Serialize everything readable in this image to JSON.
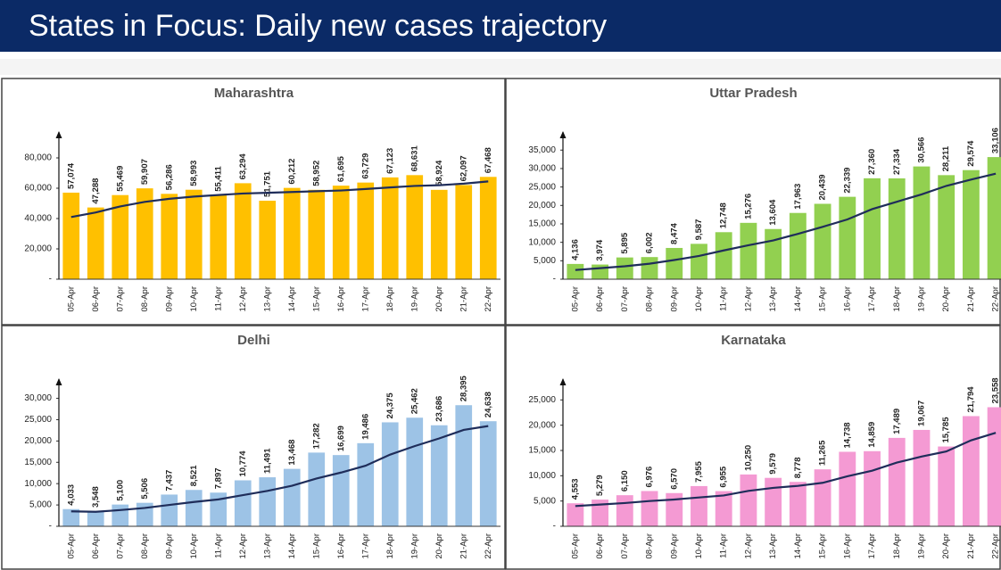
{
  "title": "States in Focus: Daily new cases trajectory",
  "chart_data": [
    {
      "type": "bar",
      "title": "Maharashtra",
      "categories": [
        "05-Apr",
        "06-Apr",
        "07-Apr",
        "08-Apr",
        "09-Apr",
        "10-Apr",
        "11-Apr",
        "12-Apr",
        "13-Apr",
        "14-Apr",
        "15-Apr",
        "16-Apr",
        "17-Apr",
        "18-Apr",
        "19-Apr",
        "20-Apr",
        "21-Apr",
        "22-Apr"
      ],
      "series": [
        {
          "type": "bar",
          "color": "#ffc000",
          "values": [
            57074,
            47288,
            55469,
            59907,
            56286,
            58993,
            55411,
            63294,
            51751,
            60212,
            58952,
            61695,
            63729,
            67123,
            68631,
            58924,
            62097,
            67468
          ],
          "value_labels": [
            "57,074",
            "47,288",
            "55,469",
            "59,907",
            "56,286",
            "58,993",
            "55,411",
            "63,294",
            "51,751",
            "60,212",
            "58,952",
            "61,695",
            "63,729",
            "67,123",
            "68,631",
            "58,924",
            "62,097",
            "67,468"
          ]
        },
        {
          "type": "line",
          "color": "#1f2d5a",
          "values": [
            41000,
            44000,
            48000,
            51000,
            53000,
            54500,
            55500,
            56500,
            57000,
            57500,
            58000,
            58500,
            59500,
            60500,
            61500,
            62000,
            63000,
            64500
          ]
        }
      ],
      "ylim": [
        0,
        90000
      ],
      "yticks": [
        {
          "value": 0,
          "label": "-"
        },
        {
          "value": 20000,
          "label": "20,000"
        },
        {
          "value": 40000,
          "label": "40,000"
        },
        {
          "value": 60000,
          "label": "60,000"
        },
        {
          "value": 80000,
          "label": "80,000"
        }
      ]
    },
    {
      "type": "bar",
      "title": "Uttar Pradesh",
      "categories": [
        "05-Apr",
        "06-Apr",
        "07-Apr",
        "08-Apr",
        "09-Apr",
        "10-Apr",
        "11-Apr",
        "12-Apr",
        "13-Apr",
        "14-Apr",
        "15-Apr",
        "16-Apr",
        "17-Apr",
        "18-Apr",
        "19-Apr",
        "20-Apr",
        "21-Apr",
        "22-Apr"
      ],
      "series": [
        {
          "type": "bar",
          "color": "#92d050",
          "values": [
            4136,
            3974,
            5895,
            6002,
            8474,
            9587,
            12748,
            15276,
            13604,
            17963,
            20439,
            22339,
            27360,
            27334,
            30566,
            28211,
            29574,
            33106
          ],
          "value_labels": [
            "4,136",
            "3,974",
            "5,895",
            "6,002",
            "8,474",
            "9,587",
            "12,748",
            "15,276",
            "13,604",
            "17,963",
            "20,439",
            "22,339",
            "27,360",
            "27,334",
            "30,566",
            "28,211",
            "29,574",
            "33,106"
          ]
        },
        {
          "type": "line",
          "color": "#1f2d5a",
          "values": [
            2500,
            3000,
            3500,
            4200,
            5200,
            6300,
            7800,
            9200,
            10500,
            12300,
            14200,
            16200,
            19000,
            21000,
            23000,
            25300,
            27000,
            28600
          ]
        }
      ],
      "ylim": [
        0,
        37000
      ],
      "yticks": [
        {
          "value": 0,
          "label": "-"
        },
        {
          "value": 5000,
          "label": "5,000"
        },
        {
          "value": 10000,
          "label": "10,000"
        },
        {
          "value": 15000,
          "label": "15,000"
        },
        {
          "value": 20000,
          "label": "20,000"
        },
        {
          "value": 25000,
          "label": "25,000"
        },
        {
          "value": 30000,
          "label": "30,000"
        },
        {
          "value": 35000,
          "label": "35,000"
        }
      ]
    },
    {
      "type": "bar",
      "title": "Delhi",
      "categories": [
        "05-Apr",
        "06-Apr",
        "07-Apr",
        "08-Apr",
        "09-Apr",
        "10-Apr",
        "11-Apr",
        "12-Apr",
        "13-Apr",
        "14-Apr",
        "15-Apr",
        "16-Apr",
        "17-Apr",
        "18-Apr",
        "19-Apr",
        "20-Apr",
        "21-Apr",
        "22-Apr"
      ],
      "series": [
        {
          "type": "bar",
          "color": "#9dc3e6",
          "values": [
            4033,
            3548,
            5100,
            5506,
            7437,
            8521,
            7897,
            10774,
            11491,
            13468,
            17282,
            16699,
            19486,
            24375,
            25462,
            23686,
            28395,
            24638
          ],
          "value_labels": [
            "4,033",
            "3,548",
            "5,100",
            "5,506",
            "7,437",
            "8,521",
            "7,897",
            "10,774",
            "11,491",
            "13,468",
            "17,282",
            "16,699",
            "19,486",
            "24,375",
            "25,462",
            "23,686",
            "28,395",
            "24,638"
          ]
        },
        {
          "type": "line",
          "color": "#1f2d5a",
          "values": [
            3500,
            3400,
            3800,
            4300,
            5000,
            5700,
            6300,
            7300,
            8300,
            9500,
            11200,
            12600,
            14200,
            16800,
            18800,
            20600,
            22600,
            23500
          ]
        }
      ],
      "ylim": [
        0,
        32000
      ],
      "yticks": [
        {
          "value": 0,
          "label": "-"
        },
        {
          "value": 5000,
          "label": "5,000"
        },
        {
          "value": 10000,
          "label": "10,000"
        },
        {
          "value": 15000,
          "label": "15,000"
        },
        {
          "value": 20000,
          "label": "20,000"
        },
        {
          "value": 25000,
          "label": "25,000"
        },
        {
          "value": 30000,
          "label": "30,000"
        }
      ]
    },
    {
      "type": "bar",
      "title": "Karnataka",
      "categories": [
        "05-Apr",
        "06-Apr",
        "07-Apr",
        "08-Apr",
        "09-Apr",
        "10-Apr",
        "11-Apr",
        "12-Apr",
        "13-Apr",
        "14-Apr",
        "15-Apr",
        "16-Apr",
        "17-Apr",
        "18-Apr",
        "19-Apr",
        "20-Apr",
        "21-Apr",
        "22-Apr"
      ],
      "series": [
        {
          "type": "bar",
          "color": "#f49ad3",
          "values": [
            4553,
            5279,
            6150,
            6976,
            6570,
            7955,
            6955,
            10250,
            9579,
            8778,
            11265,
            14738,
            14859,
            17489,
            19067,
            15785,
            21794,
            23558
          ],
          "value_labels": [
            "4,553",
            "5,279",
            "6,150",
            "6,976",
            "6,570",
            "7,955",
            "6,955",
            "10,250",
            "9,579",
            "8,778",
            "11,265",
            "14,738",
            "14,859",
            "17,489",
            "19,067",
            "15,785",
            "21,794",
            "23,558"
          ]
        },
        {
          "type": "line",
          "color": "#1f2d5a",
          "values": [
            4000,
            4300,
            4600,
            5000,
            5300,
            5700,
            6100,
            7000,
            7600,
            8000,
            8600,
            9900,
            11000,
            12600,
            13800,
            14800,
            17000,
            18500
          ]
        }
      ],
      "ylim": [
        0,
        27000
      ],
      "yticks": [
        {
          "value": 0,
          "label": "-"
        },
        {
          "value": 5000,
          "label": "5,000"
        },
        {
          "value": 10000,
          "label": "10,000"
        },
        {
          "value": 15000,
          "label": "15,000"
        },
        {
          "value": 20000,
          "label": "20,000"
        },
        {
          "value": 25000,
          "label": "25,000"
        }
      ]
    }
  ]
}
